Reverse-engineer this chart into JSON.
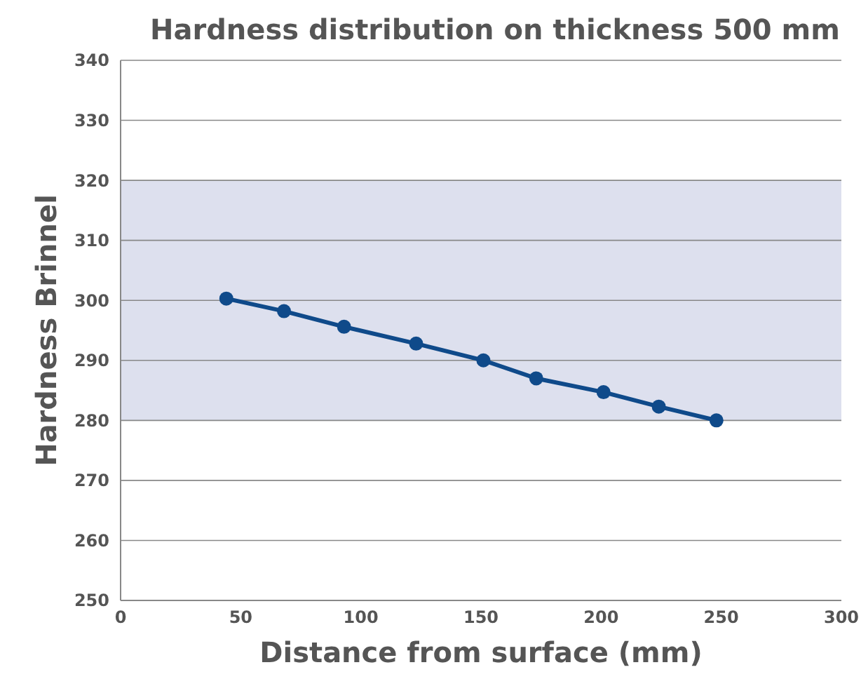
{
  "chart_data": {
    "type": "line",
    "title": "Hardness distribution on thickness 500 mm",
    "xlabel": "Distance from surface (mm)",
    "ylabel": "Hardness Brinnel",
    "x": [
      44,
      68,
      93,
      123,
      151,
      173,
      201,
      224,
      248
    ],
    "series": [
      {
        "color": "#0f4a8a",
        "values": [
          300.3,
          298.2,
          295.6,
          292.8,
          290,
          287,
          284.7,
          282.3,
          280
        ]
      }
    ],
    "xlim": [
      0,
      300
    ],
    "xticks": [
      0,
      50,
      100,
      150,
      200,
      250,
      300
    ],
    "ylim": [
      250,
      340
    ],
    "yticks": [
      250,
      260,
      270,
      280,
      290,
      300,
      310,
      320,
      330,
      340
    ],
    "bands": [
      {
        "axis": "y",
        "from": 280,
        "to": 320,
        "color": "#dde0ee"
      }
    ],
    "grid": "y",
    "marker": "circle",
    "line_style": "solid"
  }
}
